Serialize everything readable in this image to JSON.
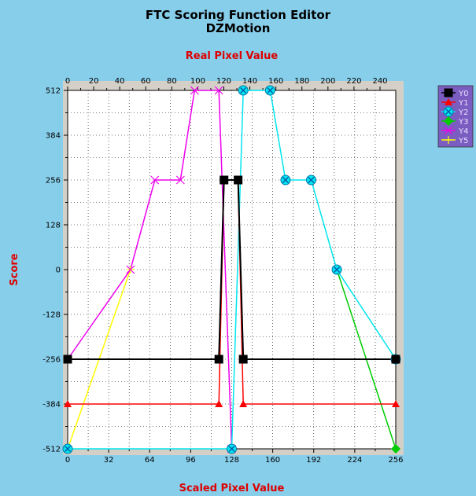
{
  "title": "FTC Scoring Function Editor",
  "subtitle": "DZMotion",
  "chart_data": {
    "type": "line",
    "title": "FTC Scoring Function Editor",
    "subtitle": "DZMotion",
    "xlabel": "Scaled Pixel Value",
    "x2label": "Real Pixel Value",
    "ylabel": "Score",
    "xlim": [
      0,
      256
    ],
    "ylim": [
      -512,
      512
    ],
    "x_ticks": [
      0,
      32,
      64,
      96,
      128,
      160,
      192,
      224,
      256
    ],
    "x2_ticks": [
      0,
      20,
      40,
      60,
      80,
      100,
      120,
      140,
      160,
      180,
      200,
      220,
      240
    ],
    "y_ticks": [
      512,
      384,
      256,
      128,
      0,
      -128,
      -256,
      -384,
      -512
    ],
    "grid": true,
    "legend_position": "right",
    "series": [
      {
        "name": "Y0",
        "color": "#000000",
        "marker": "square",
        "points": [
          [
            0,
            -256
          ],
          [
            118,
            -256
          ],
          [
            122,
            256
          ],
          [
            133,
            256
          ],
          [
            137,
            -256
          ],
          [
            256,
            -256
          ]
        ]
      },
      {
        "name": "Y1",
        "color": "#ff0000",
        "marker": "triangle",
        "points": [
          [
            0,
            -384
          ],
          [
            118,
            -384
          ],
          [
            122,
            256
          ],
          [
            133,
            256
          ],
          [
            137,
            -384
          ],
          [
            256,
            -384
          ]
        ]
      },
      {
        "name": "Y2",
        "color": "#00e5ee",
        "marker": "circle-x",
        "points": [
          [
            0,
            -512
          ],
          [
            128,
            -512
          ],
          [
            137,
            512
          ],
          [
            158,
            512
          ],
          [
            170,
            256
          ],
          [
            190,
            256
          ],
          [
            210,
            0
          ],
          [
            256,
            -256
          ]
        ]
      },
      {
        "name": "Y3",
        "color": "#00cc00",
        "marker": "diamond",
        "points": [
          [
            210,
            0
          ],
          [
            256,
            -512
          ]
        ]
      },
      {
        "name": "Y4",
        "color": "#ee00ee",
        "marker": "x",
        "points": [
          [
            0,
            -256
          ],
          [
            49,
            0
          ],
          [
            68,
            256
          ],
          [
            88,
            256
          ],
          [
            99,
            512
          ],
          [
            118,
            512
          ],
          [
            128,
            -512
          ]
        ]
      },
      {
        "name": "Y5",
        "color": "#ffff00",
        "marker": "plus",
        "points": [
          [
            0,
            -512
          ],
          [
            49,
            0
          ]
        ]
      }
    ]
  }
}
